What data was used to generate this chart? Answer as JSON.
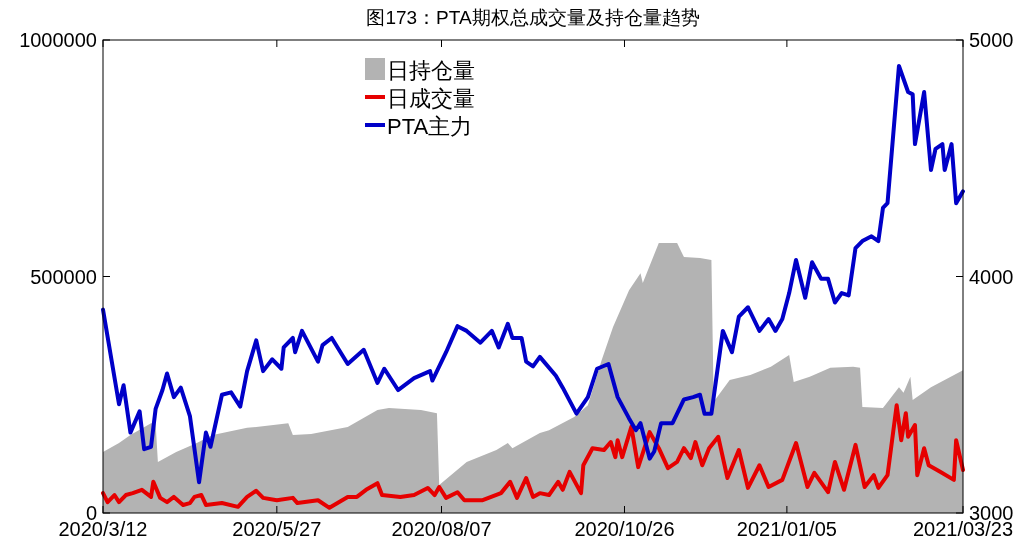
{
  "chart_data": {
    "type": "line",
    "title": "图173：PTA期权总成交量及持仓量趋势",
    "legend": "top",
    "grid": false,
    "xlim": [
      "2020-03-12",
      "2021-03-23"
    ],
    "xticks": [
      {
        "value": "2020-03-12",
        "label": "2020/3/12"
      },
      {
        "value": "2020-05-27",
        "label": "2020/5/27"
      },
      {
        "value": "2020-08-07",
        "label": "2020/08/07"
      },
      {
        "value": "2020-10-26",
        "label": "2020/10/26"
      },
      {
        "value": "2021-01-05",
        "label": "2021/01/05"
      },
      {
        "value": "2021-03-23",
        "label": "2021/03/23"
      }
    ],
    "ylim": [
      0,
      1000000
    ],
    "yticks": [
      0,
      500000,
      1000000
    ],
    "y2lim": [
      3000,
      5000
    ],
    "y2ticks": [
      3000,
      4000,
      5000
    ],
    "series": [
      {
        "name": "日持仓量",
        "type": "area",
        "color": "#b3b3b3",
        "x": [
          "2020-03-12",
          "2020-03-19",
          "2020-03-24",
          "2020-04-02",
          "2020-04-04",
          "2020-04-05",
          "2020-04-13",
          "2020-04-22",
          "2020-04-29",
          "2020-05-14",
          "2020-05-18",
          "2020-06-01",
          "2020-06-03",
          "2020-06-11",
          "2020-06-27",
          "2020-07-10",
          "2020-07-15",
          "2020-07-29",
          "2020-08-05",
          "2020-08-06",
          "2020-08-18",
          "2020-08-31",
          "2020-09-05",
          "2020-09-07",
          "2020-09-19",
          "2020-09-23",
          "2020-10-04",
          "2020-10-10",
          "2020-10-16",
          "2020-10-21",
          "2020-10-28",
          "2020-11-02",
          "2020-11-03",
          "2020-11-10",
          "2020-11-18",
          "2020-11-21",
          "2020-11-28",
          "2020-12-03",
          "2020-12-04",
          "2020-12-11",
          "2020-12-20",
          "2020-12-29",
          "2021-01-06",
          "2021-01-08",
          "2021-01-15",
          "2021-01-24",
          "2021-02-03",
          "2021-02-06",
          "2021-02-07",
          "2021-02-16",
          "2021-02-23",
          "2021-02-25",
          "2021-02-28",
          "2021-03-01",
          "2021-03-09",
          "2021-03-23"
        ],
        "values": [
          129000,
          148000,
          165000,
          190000,
          190000,
          108000,
          129000,
          148000,
          165000,
          180000,
          182000,
          190000,
          165000,
          167000,
          182000,
          218000,
          222000,
          218000,
          211000,
          59000,
          108000,
          133000,
          148000,
          137000,
          169000,
          175000,
          203000,
          228000,
          323000,
          393000,
          471000,
          507000,
          486000,
          571000,
          571000,
          541000,
          539000,
          535000,
          235000,
          281000,
          292000,
          309000,
          334000,
          277000,
          288000,
          307000,
          309000,
          307000,
          224000,
          222000,
          266000,
          254000,
          288000,
          239000,
          266000,
          302000
        ]
      },
      {
        "name": "日成交量",
        "color": "#e60000",
        "x": [
          "2020-03-12",
          "2020-03-14",
          "2020-03-17",
          "2020-03-19",
          "2020-03-22",
          "2020-03-25",
          "2020-03-29",
          "2020-04-02",
          "2020-04-03",
          "2020-04-06",
          "2020-04-09",
          "2020-04-12",
          "2020-04-16",
          "2020-04-19",
          "2020-04-21",
          "2020-04-24",
          "2020-04-26",
          "2020-05-03",
          "2020-05-10",
          "2020-05-14",
          "2020-05-18",
          "2020-05-21",
          "2020-05-27",
          "2020-06-03",
          "2020-06-05",
          "2020-06-14",
          "2020-06-19",
          "2020-06-27",
          "2020-07-01",
          "2020-07-05",
          "2020-07-10",
          "2020-07-12",
          "2020-07-20",
          "2020-07-26",
          "2020-08-01",
          "2020-08-04",
          "2020-08-06",
          "2020-08-09",
          "2020-08-14",
          "2020-08-17",
          "2020-08-25",
          "2020-09-02",
          "2020-09-06",
          "2020-09-09",
          "2020-09-13",
          "2020-09-16",
          "2020-09-19",
          "2020-09-23",
          "2020-09-27",
          "2020-09-29",
          "2020-10-02",
          "2020-10-07",
          "2020-10-08",
          "2020-10-12",
          "2020-10-17",
          "2020-10-20",
          "2020-10-22",
          "2020-10-23",
          "2020-10-25",
          "2020-10-29",
          "2020-11-01",
          "2020-11-06",
          "2020-11-10",
          "2020-11-14",
          "2020-11-18",
          "2020-11-21",
          "2020-11-24",
          "2020-11-26",
          "2020-11-29",
          "2020-12-02",
          "2020-12-06",
          "2020-12-10",
          "2020-12-15",
          "2020-12-19",
          "2020-12-24",
          "2020-12-28",
          "2021-01-03",
          "2021-01-09",
          "2021-01-14",
          "2021-01-17",
          "2021-01-23",
          "2021-01-26",
          "2021-01-30",
          "2021-02-04",
          "2021-02-08",
          "2021-02-12",
          "2021-02-14",
          "2021-02-18",
          "2021-02-22",
          "2021-02-24",
          "2021-02-26",
          "2021-02-27",
          "2021-03-02",
          "2021-03-03",
          "2021-03-06",
          "2021-03-08",
          "2021-03-13",
          "2021-03-19",
          "2021-03-20",
          "2021-03-23"
        ],
        "values": [
          42000,
          23000,
          38000,
          23000,
          38000,
          42000,
          49000,
          34000,
          66000,
          32000,
          23000,
          34000,
          17000,
          21000,
          34000,
          38000,
          17000,
          21000,
          13000,
          34000,
          47000,
          32000,
          27000,
          32000,
          21000,
          27000,
          11000,
          34000,
          34000,
          49000,
          63000,
          38000,
          34000,
          38000,
          53000,
          38000,
          55000,
          32000,
          44000,
          27000,
          27000,
          42000,
          66000,
          32000,
          74000,
          34000,
          42000,
          38000,
          66000,
          49000,
          87000,
          42000,
          101000,
          137000,
          133000,
          150000,
          118000,
          154000,
          118000,
          182000,
          97000,
          171000,
          137000,
          95000,
          108000,
          137000,
          116000,
          150000,
          101000,
          137000,
          161000,
          74000,
          133000,
          53000,
          101000,
          55000,
          70000,
          148000,
          55000,
          85000,
          44000,
          108000,
          49000,
          144000,
          55000,
          80000,
          53000,
          80000,
          228000,
          154000,
          211000,
          161000,
          186000,
          80000,
          137000,
          101000,
          87000,
          70000,
          154000,
          91000
        ]
      },
      {
        "name": "PTA主力",
        "color": "#0000c8",
        "axis": "y2",
        "x": [
          "2020-03-12",
          "2020-03-19",
          "2020-03-21",
          "2020-03-24",
          "2020-03-28",
          "2020-03-30",
          "2020-04-02",
          "2020-04-04",
          "2020-04-07",
          "2020-04-09",
          "2020-04-12",
          "2020-04-15",
          "2020-04-19",
          "2020-04-23",
          "2020-04-26",
          "2020-04-28",
          "2020-05-03",
          "2020-05-07",
          "2020-05-11",
          "2020-05-14",
          "2020-05-18",
          "2020-05-21",
          "2020-05-25",
          "2020-05-29",
          "2020-05-30",
          "2020-06-03",
          "2020-06-04",
          "2020-06-07",
          "2020-06-14",
          "2020-06-16",
          "2020-06-20",
          "2020-06-27",
          "2020-07-04",
          "2020-07-10",
          "2020-07-13",
          "2020-07-19",
          "2020-07-26",
          "2020-08-02",
          "2020-08-03",
          "2020-08-09",
          "2020-08-14",
          "2020-08-18",
          "2020-08-24",
          "2020-08-29",
          "2020-09-01",
          "2020-09-05",
          "2020-09-07",
          "2020-09-11",
          "2020-09-13",
          "2020-09-16",
          "2020-09-19",
          "2020-09-26",
          "2020-09-29",
          "2020-10-05",
          "2020-10-10",
          "2020-10-14",
          "2020-10-19",
          "2020-10-23",
          "2020-10-28",
          "2020-10-31",
          "2020-11-02",
          "2020-11-06",
          "2020-11-08",
          "2020-11-11",
          "2020-11-16",
          "2020-11-21",
          "2020-11-25",
          "2020-11-28",
          "2020-11-30",
          "2020-12-03",
          "2020-12-08",
          "2020-12-12",
          "2020-12-15",
          "2020-12-19",
          "2020-12-24",
          "2020-12-28",
          "2020-12-31",
          "2021-01-03",
          "2021-01-06",
          "2021-01-09",
          "2021-01-13",
          "2021-01-16",
          "2021-01-20",
          "2021-01-23",
          "2021-01-26",
          "2021-01-29",
          "2021-02-01",
          "2021-02-04",
          "2021-02-07",
          "2021-02-11",
          "2021-02-14",
          "2021-02-16",
          "2021-02-18",
          "2021-02-23",
          "2021-02-27",
          "2021-03-01",
          "2021-03-02",
          "2021-03-06",
          "2021-03-09",
          "2021-03-11",
          "2021-03-14",
          "2021-03-15",
          "2021-03-18",
          "2021-03-20",
          "2021-03-23"
        ],
        "values": [
          3860,
          3460,
          3540,
          3340,
          3430,
          3270,
          3280,
          3440,
          3520,
          3590,
          3490,
          3530,
          3410,
          3130,
          3340,
          3280,
          3500,
          3510,
          3450,
          3600,
          3730,
          3600,
          3650,
          3610,
          3700,
          3740,
          3680,
          3770,
          3640,
          3710,
          3740,
          3630,
          3690,
          3550,
          3610,
          3520,
          3570,
          3600,
          3560,
          3680,
          3790,
          3770,
          3720,
          3770,
          3700,
          3800,
          3740,
          3740,
          3640,
          3620,
          3660,
          3580,
          3530,
          3420,
          3490,
          3610,
          3630,
          3490,
          3400,
          3350,
          3380,
          3230,
          3260,
          3380,
          3380,
          3480,
          3490,
          3500,
          3420,
          3420,
          3770,
          3680,
          3830,
          3870,
          3770,
          3820,
          3770,
          3820,
          3930,
          4070,
          3910,
          4060,
          3990,
          3990,
          3890,
          3930,
          3920,
          4120,
          4150,
          4170,
          4150,
          4290,
          4310,
          4890,
          4780,
          4770,
          4560,
          4780,
          4450,
          4540,
          4560,
          4450,
          4560,
          4310,
          4360
        ]
      }
    ]
  }
}
